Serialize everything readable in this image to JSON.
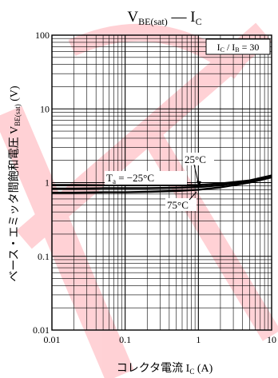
{
  "chart_data": {
    "type": "line",
    "title": {
      "main": "V",
      "main_sub": "BE(sat)",
      "dash": " — ",
      "var": "I",
      "var_sub": "C"
    },
    "xlabel": {
      "text": "コレクタ電流  I",
      "sub": "C",
      "unit": " (A)"
    },
    "ylabel": {
      "text": "ベース・エミッタ間飽和電圧  V",
      "sub": "BE(sat)",
      "unit": "  (V)"
    },
    "x_scale": "log",
    "y_scale": "log",
    "xlim": [
      0.01,
      10
    ],
    "ylim": [
      0.01,
      100
    ],
    "x_ticks": [
      {
        "value": 0.01,
        "label": "0.01"
      },
      {
        "value": 0.1,
        "label": "0.1"
      },
      {
        "value": 1,
        "label": "1"
      },
      {
        "value": 10,
        "label": "10"
      }
    ],
    "y_ticks": [
      {
        "value": 0.01,
        "label": "0.01"
      },
      {
        "value": 0.1,
        "label": "0.1"
      },
      {
        "value": 1,
        "label": "1"
      },
      {
        "value": 10,
        "label": "10"
      },
      {
        "value": 100,
        "label": "100"
      }
    ],
    "grid": true,
    "condition": {
      "a": "I",
      "a_sub": "C",
      "slash": " / ",
      "b": "I",
      "b_sub": "B",
      "eq": " = 30"
    },
    "series": [
      {
        "name": "Ta = −25°C",
        "label": {
          "t": "T",
          "sub": "a",
          "rest": " = −25°C"
        },
        "points": [
          [
            0.01,
            0.93
          ],
          [
            0.02,
            0.93
          ],
          [
            0.05,
            0.92
          ],
          [
            0.1,
            0.92
          ],
          [
            0.2,
            0.92
          ],
          [
            0.5,
            0.92
          ],
          [
            1,
            0.93
          ],
          [
            2,
            0.97
          ],
          [
            5,
            1.07
          ],
          [
            10,
            1.25
          ]
        ]
      },
      {
        "name": "25°C",
        "label": {
          "rest": "25°C"
        },
        "points": [
          [
            0.01,
            0.83
          ],
          [
            0.02,
            0.83
          ],
          [
            0.05,
            0.84
          ],
          [
            0.1,
            0.84
          ],
          [
            0.2,
            0.84
          ],
          [
            0.5,
            0.85
          ],
          [
            1,
            0.87
          ],
          [
            2,
            0.92
          ],
          [
            5,
            1.04
          ],
          [
            10,
            1.22
          ]
        ]
      },
      {
        "name": "75°C",
        "label": {
          "rest": "75°C"
        },
        "points": [
          [
            0.01,
            0.73
          ],
          [
            0.02,
            0.73
          ],
          [
            0.05,
            0.74
          ],
          [
            0.1,
            0.74
          ],
          [
            0.2,
            0.75
          ],
          [
            0.5,
            0.77
          ],
          [
            1,
            0.8
          ],
          [
            2,
            0.86
          ],
          [
            5,
            1.0
          ],
          [
            10,
            1.18
          ]
        ]
      }
    ]
  }
}
